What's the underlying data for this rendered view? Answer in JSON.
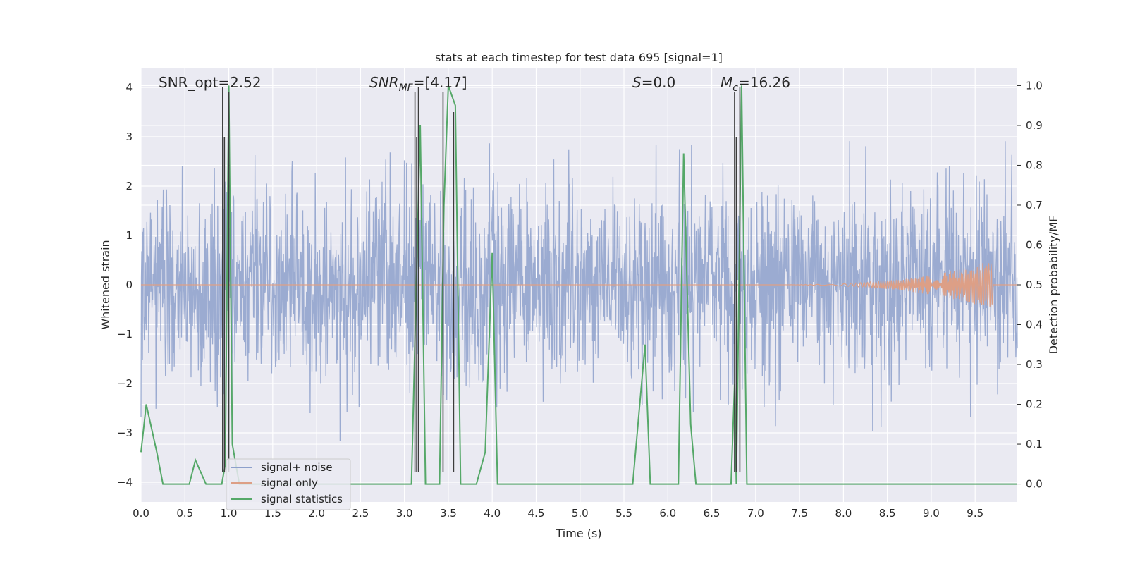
{
  "chart_data": {
    "type": "line",
    "title": "stats at each timestep for test data 695 [signal=1]",
    "xlabel": "Time (s)",
    "ylabel_left": "Whitened strain",
    "ylabel_right": "Detection probability/MF",
    "xlim": [
      0.0,
      9.98
    ],
    "ylim_left": [
      -4.4,
      4.4
    ],
    "ylim_right": [
      -0.045,
      1.045
    ],
    "x_ticks": [
      "0.0",
      "0.5",
      "1.0",
      "1.5",
      "2.0",
      "2.5",
      "3.0",
      "3.5",
      "4.0",
      "4.5",
      "5.0",
      "5.5",
      "6.0",
      "6.5",
      "7.0",
      "7.5",
      "8.0",
      "8.5",
      "9.0",
      "9.5"
    ],
    "y_ticks_left": [
      "4",
      "3",
      "2",
      "1",
      "0",
      "−1",
      "−2",
      "−3",
      "−4"
    ],
    "y_ticks_right": [
      "1.0",
      "0.9",
      "0.8",
      "0.7",
      "0.6",
      "0.5",
      "0.4",
      "0.3",
      "0.2",
      "0.1",
      "0.0"
    ],
    "grid": true,
    "legend_position": "lower-left",
    "annotations": {
      "snr_opt": "SNR_opt=2.52",
      "snr_mf_sym": "SNR",
      "snr_mf_sub": "MF",
      "snr_mf_val": "=[4.17]",
      "s_sym": "S",
      "s_val": "=0.0",
      "mc_sym": "M",
      "mc_sub": "c",
      "mc_val": "=16.26"
    },
    "series": [
      {
        "name": "signal+ noise",
        "color": "#8da0cb",
        "noise_envelope": {
          "typical_abs": 1.5,
          "max_abs": 4.0
        }
      },
      {
        "name": "signal only",
        "color": "#dd9f86",
        "chirp": {
          "start": 7.0,
          "peak_time": 9.7,
          "peak_amplitude": 0.5
        }
      },
      {
        "name": "signal statistics",
        "color": "#55a868",
        "x": [
          0.0,
          0.06,
          0.18,
          0.25,
          0.55,
          0.62,
          0.68,
          0.74,
          0.92,
          0.96,
          1.0,
          1.04,
          1.12,
          3.08,
          3.18,
          3.24,
          3.4,
          3.45,
          3.5,
          3.58,
          3.64,
          3.82,
          3.92,
          4.0,
          4.06,
          5.6,
          5.74,
          5.8,
          6.12,
          6.18,
          6.26,
          6.32,
          6.72,
          6.76,
          6.78,
          6.84,
          6.9,
          9.98
        ],
        "y": [
          0.08,
          0.2,
          0.08,
          0.0,
          0.0,
          0.06,
          0.03,
          0.0,
          0.0,
          0.05,
          1.0,
          0.1,
          0.0,
          0.0,
          0.9,
          0.0,
          0.0,
          0.7,
          1.0,
          0.95,
          0.0,
          0.0,
          0.08,
          0.58,
          0.0,
          0.0,
          0.35,
          0.0,
          0.0,
          0.83,
          0.15,
          0.0,
          0.0,
          0.25,
          0.0,
          1.0,
          0.0,
          0.0
        ]
      },
      {
        "name": "",
        "color": "#3c3c3c",
        "x": [
          0.93,
          0.95,
          1.0,
          3.12,
          3.14,
          3.16,
          3.44,
          3.56,
          6.76,
          6.78,
          6.82
        ],
        "y": [
          4.0,
          3.0,
          3.9,
          3.9,
          3.0,
          4.0,
          3.9,
          3.5,
          3.9,
          3.0,
          4.0
        ]
      }
    ]
  }
}
